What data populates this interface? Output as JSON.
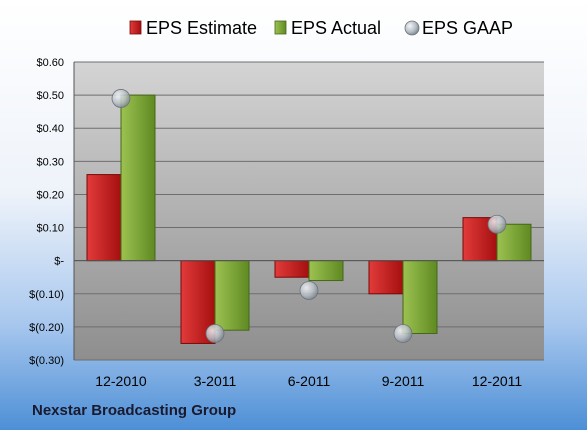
{
  "footer": {
    "company": "Nexstar Broadcasting Group"
  },
  "colors": {
    "estimate": "#cc1f1f",
    "actual": "#7fa63a",
    "gaap": "#a9b0b8",
    "bg_top": "#ffffff",
    "bg_bottom": "#4d8fd6"
  },
  "chart_data": {
    "type": "bar",
    "categories": [
      "12-2010",
      "3-2011",
      "6-2011",
      "9-2011",
      "12-2011"
    ],
    "series": [
      {
        "name": "EPS Estimate",
        "kind": "bar",
        "color": "#cc1f1f",
        "values": [
          0.26,
          -0.25,
          -0.05,
          -0.1,
          0.13
        ]
      },
      {
        "name": "EPS Actual",
        "kind": "bar",
        "color": "#7fa63a",
        "values": [
          0.5,
          -0.21,
          -0.06,
          -0.22,
          0.11
        ]
      },
      {
        "name": "EPS GAAP",
        "kind": "marker",
        "color": "#a9b0b8",
        "values": [
          0.49,
          -0.22,
          -0.09,
          -0.22,
          0.11
        ]
      }
    ],
    "y_ticks": [
      {
        "value": 0.6,
        "label": "$0.60"
      },
      {
        "value": 0.5,
        "label": "$0.50"
      },
      {
        "value": 0.4,
        "label": "$0.40"
      },
      {
        "value": 0.3,
        "label": "$0.30"
      },
      {
        "value": 0.2,
        "label": "$0.20"
      },
      {
        "value": 0.1,
        "label": "$0.10"
      },
      {
        "value": 0.0,
        "label": "$-"
      },
      {
        "value": -0.1,
        "label": "$(0.10)"
      },
      {
        "value": -0.2,
        "label": "$(0.20)"
      },
      {
        "value": -0.3,
        "label": "$(0.30)"
      }
    ],
    "ylim": [
      -0.3,
      0.6
    ],
    "grid": true,
    "legend_position": "top"
  }
}
